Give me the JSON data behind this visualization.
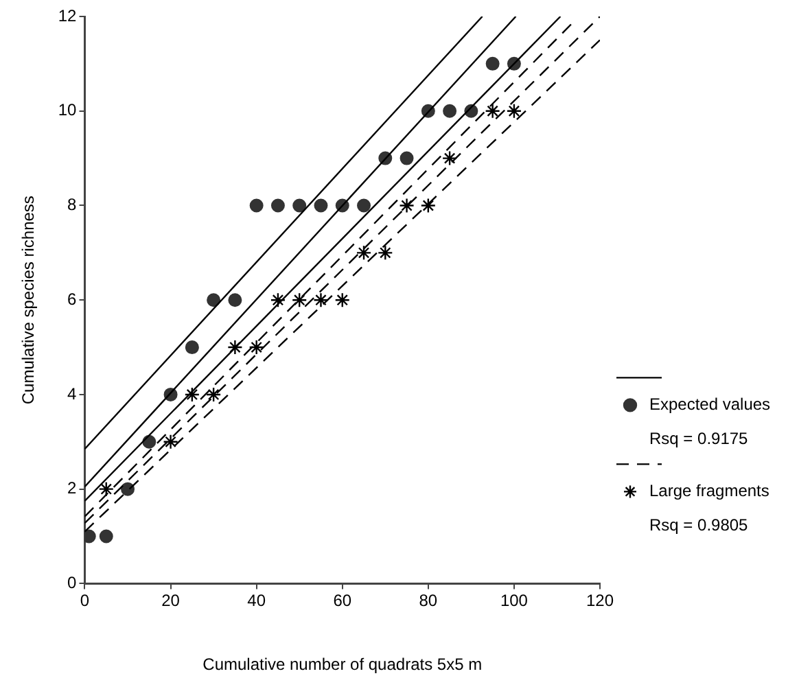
{
  "chart_data": {
    "type": "scatter",
    "xlabel": "Cumulative number of quadrats 5x5 m",
    "ylabel": "Cumulative species richness",
    "xlim": [
      0,
      120
    ],
    "xticks": [
      0,
      20,
      40,
      60,
      80,
      100,
      120
    ],
    "ylim": [
      0,
      12
    ],
    "yticks": [
      0,
      2,
      4,
      6,
      8,
      10,
      12
    ],
    "grid": false,
    "legend": "right",
    "annotations": [
      "Rsq = 0.9175",
      "Rsq = 0.9805"
    ],
    "series": [
      {
        "type": "line",
        "color": "#000000",
        "marker": "none",
        "line_style": "solid",
        "x": [
          0,
          92.6
        ],
        "values": [
          2.85,
          12
        ]
      },
      {
        "type": "line",
        "color": "#000000",
        "marker": "none",
        "line_style": "solid",
        "x": [
          0,
          100.4
        ],
        "values": [
          2.05,
          12
        ]
      },
      {
        "type": "line",
        "color": "#000000",
        "marker": "none",
        "line_style": "solid",
        "x": [
          0,
          110.8
        ],
        "values": [
          1.75,
          12
        ]
      },
      {
        "type": "line",
        "color": "#000000",
        "marker": "none",
        "line_style": "dashed",
        "x": [
          0,
          114
        ],
        "values": [
          1.42,
          11.9
        ]
      },
      {
        "type": "line",
        "color": "#000000",
        "marker": "none",
        "line_style": "dashed",
        "x": [
          0,
          120
        ],
        "values": [
          1.28,
          12
        ]
      },
      {
        "type": "line",
        "color": "#000000",
        "marker": "none",
        "line_style": "dashed",
        "x": [
          0,
          120
        ],
        "values": [
          1.1,
          11.5
        ]
      },
      {
        "type": "scatter",
        "name": "Expected values",
        "color": "#333333",
        "marker": "circle",
        "line_style": "solid",
        "x": [
          1,
          5,
          10,
          15,
          20,
          25,
          30,
          35,
          40,
          45,
          50,
          55,
          60,
          65,
          70,
          75,
          80,
          85,
          90,
          95,
          100
        ],
        "values": [
          1,
          1,
          2,
          3,
          4,
          5,
          6,
          6,
          8,
          8,
          8,
          8,
          8,
          8,
          9,
          9,
          10,
          10,
          10,
          11,
          11
        ]
      },
      {
        "type": "scatter",
        "name": "Large fragments",
        "color": "#000000",
        "marker": "cross",
        "line_style": "dashed",
        "x": [
          5,
          20,
          25,
          30,
          35,
          40,
          45,
          50,
          55,
          60,
          65,
          70,
          75,
          80,
          85,
          95,
          100
        ],
        "values": [
          2,
          3,
          4,
          4,
          5,
          5,
          6,
          6,
          6,
          6,
          7,
          7,
          8,
          8,
          9,
          10,
          10
        ]
      }
    ]
  }
}
